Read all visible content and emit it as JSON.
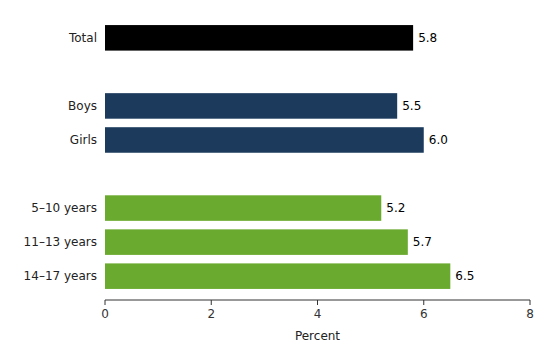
{
  "chart_data": {
    "type": "bar",
    "orientation": "horizontal",
    "categories": [
      "Total",
      "Boys",
      "Girls",
      "5–10 years",
      "11–13 years",
      "14–17 years"
    ],
    "values": [
      5.8,
      5.5,
      6.0,
      5.2,
      5.7,
      6.5
    ],
    "value_labels": [
      "5.8",
      "5.5",
      "6.0",
      "5.2",
      "5.7",
      "6.5"
    ],
    "colors": [
      "#000000",
      "#1b3a5c",
      "#1b3a5c",
      "#6aaa2e",
      "#6aaa2e",
      "#6aaa2e"
    ],
    "xlabel": "Percent",
    "xlim": [
      0,
      8
    ],
    "xticks": [
      0,
      2,
      4,
      6,
      8
    ],
    "data_labels": true,
    "grid": false
  }
}
